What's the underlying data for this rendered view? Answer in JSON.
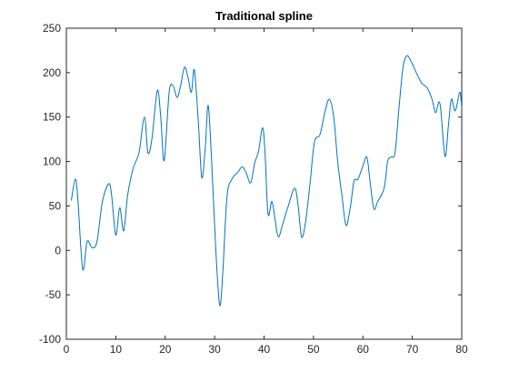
{
  "chart_data": {
    "type": "line",
    "title": "Traditional spline",
    "xlabel": "",
    "ylabel": "",
    "xlim": [
      0,
      80
    ],
    "ylim": [
      -100,
      250
    ],
    "xticks": [
      0,
      10,
      20,
      30,
      40,
      50,
      60,
      70,
      80
    ],
    "yticks": [
      -100,
      -50,
      0,
      50,
      100,
      150,
      200,
      250
    ],
    "grid": false,
    "box": true,
    "series": [
      {
        "color": "#0072bd",
        "points": [
          [
            1,
            56
          ],
          [
            1.8,
            80
          ],
          [
            2.3,
            60
          ],
          [
            3.3,
            -21
          ],
          [
            4.2,
            10
          ],
          [
            5.2,
            3
          ],
          [
            6.2,
            10
          ],
          [
            7.3,
            55
          ],
          [
            8.6,
            75
          ],
          [
            9.2,
            60
          ],
          [
            10,
            17
          ],
          [
            10.8,
            48
          ],
          [
            11.6,
            22
          ],
          [
            12.4,
            62
          ],
          [
            13.5,
            92
          ],
          [
            14.7,
            110
          ],
          [
            15.8,
            150
          ],
          [
            16.5,
            110
          ],
          [
            17.3,
            125
          ],
          [
            18.4,
            180
          ],
          [
            19.1,
            150
          ],
          [
            19.8,
            101
          ],
          [
            20.8,
            178
          ],
          [
            21.6,
            185
          ],
          [
            22.4,
            172
          ],
          [
            23.1,
            185
          ],
          [
            23.9,
            206
          ],
          [
            24.6,
            195
          ],
          [
            25.3,
            178
          ],
          [
            25.9,
            203
          ],
          [
            26.7,
            145
          ],
          [
            27.4,
            82
          ],
          [
            28.1,
            115
          ],
          [
            28.7,
            163
          ],
          [
            29.4,
            100
          ],
          [
            30.2,
            5
          ],
          [
            31,
            -61
          ],
          [
            31.6,
            -30
          ],
          [
            32.5,
            60
          ],
          [
            33.5,
            80
          ],
          [
            34.7,
            88
          ],
          [
            35.6,
            94
          ],
          [
            36.4,
            87
          ],
          [
            37.3,
            76
          ],
          [
            38.1,
            98
          ],
          [
            38.9,
            112
          ],
          [
            39.7,
            138
          ],
          [
            40.2,
            110
          ],
          [
            40.8,
            41
          ],
          [
            41.6,
            55
          ],
          [
            42.3,
            32
          ],
          [
            42.9,
            15
          ],
          [
            43.8,
            30
          ],
          [
            44.9,
            50
          ],
          [
            46.2,
            70
          ],
          [
            46.9,
            50
          ],
          [
            47.6,
            15
          ],
          [
            48.4,
            32
          ],
          [
            49.3,
            75
          ],
          [
            50.2,
            122
          ],
          [
            51.3,
            130
          ],
          [
            52.3,
            155
          ],
          [
            53.2,
            170
          ],
          [
            54.1,
            150
          ],
          [
            54.9,
            100
          ],
          [
            55.8,
            60
          ],
          [
            56.6,
            28
          ],
          [
            57.5,
            50
          ],
          [
            58.2,
            78
          ],
          [
            59,
            80
          ],
          [
            60,
            95
          ],
          [
            60.8,
            105
          ],
          [
            61.4,
            80
          ],
          [
            62.2,
            47
          ],
          [
            63,
            55
          ],
          [
            64.3,
            70
          ],
          [
            65,
            100
          ],
          [
            65.7,
            105
          ],
          [
            66.5,
            110
          ],
          [
            67.3,
            160
          ],
          [
            68.1,
            205
          ],
          [
            68.9,
            219
          ],
          [
            69.8,
            212
          ],
          [
            70.8,
            200
          ],
          [
            71.9,
            188
          ],
          [
            73,
            183
          ],
          [
            74,
            170
          ],
          [
            74.7,
            155
          ],
          [
            75.6,
            165
          ],
          [
            76.6,
            106
          ],
          [
            77.3,
            140
          ],
          [
            77.9,
            170
          ],
          [
            78.7,
            157
          ],
          [
            79.6,
            178
          ],
          [
            80,
            160
          ]
        ]
      }
    ]
  }
}
